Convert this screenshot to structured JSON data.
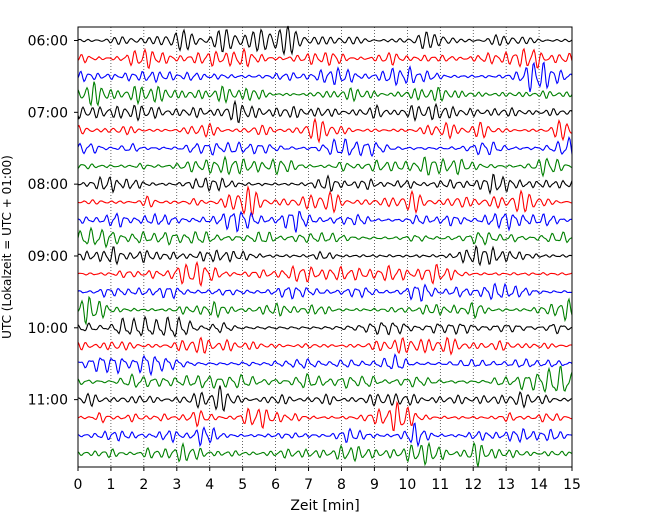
{
  "chart_data": {
    "type": "line",
    "title": "",
    "xlabel": "Zeit  [min]",
    "ylabel": "UTC (Lokalzeit = UTC + 01:00)",
    "xlim": [
      0,
      15
    ],
    "x_ticks": [
      "0",
      "1",
      "2",
      "3",
      "4",
      "5",
      "6",
      "7",
      "8",
      "9",
      "10",
      "11",
      "12",
      "13",
      "14",
      "15"
    ],
    "y_tick_labels": [
      "06:00",
      "07:00",
      "08:00",
      "09:00",
      "10:00",
      "11:00"
    ],
    "grid": "vertical-dotted",
    "legend": "none",
    "trace_minutes_per_line": 15,
    "trace_color_cycle": [
      "#000000",
      "#ff0000",
      "#0000ff",
      "#008000"
    ],
    "series": [
      {
        "start": "06:00",
        "color": "#000000"
      },
      {
        "start": "06:15",
        "color": "#ff0000"
      },
      {
        "start": "06:30",
        "color": "#0000ff"
      },
      {
        "start": "06:45",
        "color": "#008000"
      },
      {
        "start": "07:00",
        "color": "#000000"
      },
      {
        "start": "07:15",
        "color": "#ff0000"
      },
      {
        "start": "07:30",
        "color": "#0000ff"
      },
      {
        "start": "07:45",
        "color": "#008000"
      },
      {
        "start": "08:00",
        "color": "#000000"
      },
      {
        "start": "08:15",
        "color": "#ff0000"
      },
      {
        "start": "08:30",
        "color": "#0000ff"
      },
      {
        "start": "08:45",
        "color": "#008000"
      },
      {
        "start": "09:00",
        "color": "#000000"
      },
      {
        "start": "09:15",
        "color": "#ff0000"
      },
      {
        "start": "09:30",
        "color": "#0000ff"
      },
      {
        "start": "09:45",
        "color": "#008000"
      },
      {
        "start": "10:00",
        "color": "#000000"
      },
      {
        "start": "10:15",
        "color": "#ff0000"
      },
      {
        "start": "10:30",
        "color": "#0000ff"
      },
      {
        "start": "10:45",
        "color": "#008000"
      },
      {
        "start": "11:00",
        "color": "#000000"
      },
      {
        "start": "11:15",
        "color": "#ff0000"
      },
      {
        "start": "11:30",
        "color": "#0000ff"
      },
      {
        "start": "11:45",
        "color": "#008000"
      }
    ]
  }
}
